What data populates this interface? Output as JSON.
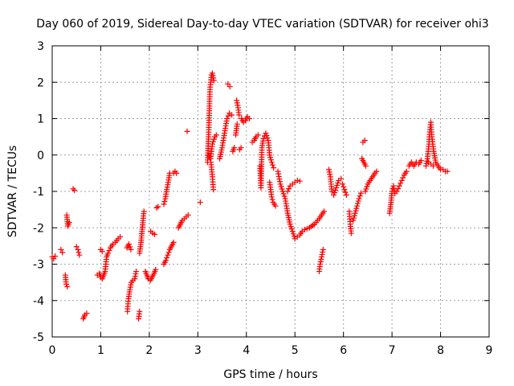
{
  "chart_data": {
    "type": "scatter",
    "title": "Day 060 of 2019, Sidereal Day-to-day VTEC variation (SDTVAR) for receiver ohi3",
    "xlabel": "GPS time / hours",
    "ylabel": "SDTVAR / TECUs",
    "xlim": [
      0,
      9
    ],
    "ylim": [
      -5,
      3
    ],
    "xticks": [
      0,
      1,
      2,
      3,
      4,
      5,
      6,
      7,
      8,
      9
    ],
    "yticks": [
      -5,
      -4,
      -3,
      -2,
      -1,
      0,
      1,
      2,
      3
    ],
    "grid": true,
    "marker": "+",
    "color": "#ff0000",
    "segments": [
      [
        [
          0.0,
          -2.8
        ],
        [
          0.03,
          -2.85
        ],
        [
          0.06,
          -2.78
        ]
      ],
      [
        [
          0.18,
          -2.6
        ],
        [
          0.21,
          -2.68
        ]
      ],
      [
        [
          0.27,
          -3.3
        ],
        [
          0.29,
          -3.55
        ],
        [
          0.31,
          -3.62
        ]
      ],
      [
        [
          0.3,
          -1.65
        ],
        [
          0.32,
          -1.95
        ],
        [
          0.35,
          -1.85
        ]
      ],
      [
        [
          0.43,
          -0.93
        ],
        [
          0.46,
          -0.97
        ]
      ],
      [
        [
          0.5,
          -2.52
        ],
        [
          0.53,
          -2.6
        ],
        [
          0.56,
          -2.75
        ]
      ],
      [
        [
          0.64,
          -4.5
        ],
        [
          0.67,
          -4.4
        ],
        [
          0.71,
          -4.35
        ]
      ],
      [
        [
          0.93,
          -3.3
        ],
        [
          0.97,
          -3.25
        ],
        [
          1.0,
          -3.35
        ],
        [
          1.03,
          -3.4
        ],
        [
          1.06,
          -3.3
        ],
        [
          1.09,
          -3.2
        ],
        [
          1.12,
          -2.8
        ],
        [
          1.15,
          -2.7
        ],
        [
          1.2,
          -2.55
        ],
        [
          1.25,
          -2.45
        ],
        [
          1.3,
          -2.4
        ],
        [
          1.36,
          -2.3
        ],
        [
          1.4,
          -2.25
        ]
      ],
      [
        [
          1.0,
          -2.6
        ],
        [
          1.03,
          -2.65
        ]
      ],
      [
        [
          1.55,
          -4.3
        ],
        [
          1.57,
          -3.95
        ],
        [
          1.6,
          -3.7
        ],
        [
          1.63,
          -3.5
        ],
        [
          1.66,
          -3.45
        ],
        [
          1.7,
          -3.4
        ],
        [
          1.73,
          -3.2
        ]
      ],
      [
        [
          1.54,
          -2.55
        ],
        [
          1.58,
          -2.45
        ],
        [
          1.62,
          -2.6
        ]
      ],
      [
        [
          1.78,
          -4.5
        ],
        [
          1.8,
          -4.3
        ]
      ],
      [
        [
          1.8,
          -2.7
        ],
        [
          1.83,
          -2.4
        ],
        [
          1.85,
          -2.1
        ],
        [
          1.87,
          -1.8
        ],
        [
          1.89,
          -1.55
        ]
      ],
      [
        [
          1.92,
          -3.2
        ],
        [
          1.95,
          -3.3
        ],
        [
          1.98,
          -3.4
        ],
        [
          2.02,
          -3.45
        ],
        [
          2.06,
          -3.35
        ],
        [
          2.1,
          -3.25
        ],
        [
          2.13,
          -3.15
        ]
      ],
      [
        [
          2.03,
          -2.1
        ],
        [
          2.07,
          -2.15
        ],
        [
          2.11,
          -2.18
        ]
      ],
      [
        [
          2.15,
          -1.45
        ],
        [
          2.18,
          -1.42
        ]
      ],
      [
        [
          2.3,
          -3.0
        ],
        [
          2.34,
          -2.9
        ],
        [
          2.38,
          -2.75
        ],
        [
          2.42,
          -2.6
        ],
        [
          2.46,
          -2.5
        ],
        [
          2.5,
          -2.4
        ]
      ],
      [
        [
          2.3,
          -1.35
        ],
        [
          2.33,
          -1.2
        ],
        [
          2.36,
          -0.95
        ],
        [
          2.39,
          -0.75
        ],
        [
          2.42,
          -0.5
        ]
      ],
      [
        [
          2.5,
          -0.5
        ],
        [
          2.53,
          -0.45
        ],
        [
          2.56,
          -0.5
        ]
      ],
      [
        [
          2.6,
          -2.0
        ],
        [
          2.64,
          -1.9
        ],
        [
          2.68,
          -1.8
        ],
        [
          2.72,
          -1.75
        ],
        [
          2.76,
          -1.7
        ],
        [
          2.8,
          -1.65
        ]
      ],
      [
        [
          2.78,
          0.65
        ]
      ],
      [
        [
          3.05,
          -1.3
        ]
      ],
      [
        [
          3.2,
          -0.2
        ],
        [
          3.22,
          0.5
        ],
        [
          3.25,
          1.8
        ],
        [
          3.28,
          2.2
        ],
        [
          3.3,
          2.25
        ],
        [
          3.33,
          2.05
        ]
      ],
      [
        [
          3.27,
          -0.2
        ],
        [
          3.3,
          -0.6
        ],
        [
          3.32,
          -0.95
        ]
      ],
      [
        [
          3.22,
          0.0
        ],
        [
          3.26,
          -0.1
        ],
        [
          3.3,
          0.3
        ],
        [
          3.35,
          0.5
        ],
        [
          3.38,
          0.55
        ]
      ],
      [
        [
          3.45,
          -0.1
        ],
        [
          3.5,
          0.2
        ],
        [
          3.55,
          0.6
        ],
        [
          3.6,
          1.0
        ],
        [
          3.65,
          1.15
        ],
        [
          3.7,
          1.1
        ]
      ],
      [
        [
          3.62,
          1.95
        ],
        [
          3.66,
          1.88
        ]
      ],
      [
        [
          3.72,
          0.1
        ],
        [
          3.75,
          0.2
        ]
      ],
      [
        [
          3.78,
          0.55
        ],
        [
          3.81,
          0.85
        ]
      ],
      [
        [
          3.8,
          1.5
        ],
        [
          3.83,
          1.3
        ],
        [
          3.85,
          1.1
        ]
      ],
      [
        [
          3.86,
          0.15
        ],
        [
          3.89,
          0.2
        ]
      ],
      [
        [
          3.9,
          1.0
        ],
        [
          3.94,
          0.9
        ],
        [
          3.98,
          0.95
        ],
        [
          4.02,
          1.05
        ],
        [
          4.06,
          1.0
        ]
      ],
      [
        [
          4.12,
          0.35
        ],
        [
          4.16,
          0.4
        ],
        [
          4.2,
          0.5
        ],
        [
          4.24,
          0.55
        ]
      ],
      [
        [
          4.28,
          -0.3
        ],
        [
          4.3,
          -0.9
        ],
        [
          4.32,
          0.2
        ],
        [
          4.35,
          0.45
        ],
        [
          4.4,
          0.6
        ],
        [
          4.45,
          0.4
        ],
        [
          4.48,
          0.0
        ],
        [
          4.52,
          -0.2
        ],
        [
          4.56,
          -0.35
        ]
      ],
      [
        [
          4.48,
          -0.75
        ],
        [
          4.52,
          -1.15
        ],
        [
          4.55,
          -1.3
        ],
        [
          4.6,
          -1.4
        ]
      ],
      [
        [
          4.65,
          -0.45
        ],
        [
          4.7,
          -0.8
        ],
        [
          4.75,
          -1.0
        ],
        [
          4.8,
          -1.2
        ],
        [
          4.85,
          -1.6
        ],
        [
          4.9,
          -1.9
        ],
        [
          4.95,
          -2.1
        ],
        [
          5.0,
          -2.3
        ],
        [
          5.05,
          -2.25
        ],
        [
          5.1,
          -2.2
        ],
        [
          5.15,
          -2.1
        ],
        [
          5.2,
          -2.05
        ],
        [
          5.3,
          -2.0
        ],
        [
          5.4,
          -1.9
        ],
        [
          5.5,
          -1.75
        ],
        [
          5.55,
          -1.65
        ],
        [
          5.6,
          -1.55
        ]
      ],
      [
        [
          4.85,
          -1.0
        ],
        [
          4.9,
          -0.85
        ],
        [
          4.95,
          -0.8
        ],
        [
          5.0,
          -0.75
        ],
        [
          5.05,
          -0.7
        ],
        [
          5.1,
          -0.72
        ]
      ],
      [
        [
          5.5,
          -3.2
        ],
        [
          5.52,
          -3.0
        ],
        [
          5.55,
          -2.8
        ],
        [
          5.58,
          -2.6
        ]
      ],
      [
        [
          5.7,
          -0.4
        ],
        [
          5.73,
          -0.6
        ],
        [
          5.76,
          -1.0
        ]
      ],
      [
        [
          5.8,
          -1.1
        ],
        [
          5.85,
          -0.9
        ],
        [
          5.9,
          -0.7
        ],
        [
          5.95,
          -0.65
        ]
      ],
      [
        [
          5.98,
          -0.8
        ],
        [
          6.02,
          -0.95
        ],
        [
          6.06,
          -1.1
        ]
      ],
      [
        [
          6.12,
          -1.55
        ],
        [
          6.14,
          -1.9
        ],
        [
          6.16,
          -2.15
        ]
      ],
      [
        [
          6.2,
          -1.8
        ],
        [
          6.24,
          -1.6
        ],
        [
          6.28,
          -1.4
        ],
        [
          6.32,
          -1.2
        ],
        [
          6.36,
          -1.05
        ]
      ],
      [
        [
          6.4,
          0.35
        ],
        [
          6.44,
          0.4
        ]
      ],
      [
        [
          6.38,
          -0.1
        ],
        [
          6.42,
          -0.2
        ],
        [
          6.46,
          -0.3
        ]
      ],
      [
        [
          6.45,
          -1.0
        ],
        [
          6.5,
          -0.8
        ],
        [
          6.55,
          -0.7
        ],
        [
          6.6,
          -0.6
        ],
        [
          6.65,
          -0.5
        ]
      ],
      [
        [
          6.68,
          -0.45
        ]
      ],
      [
        [
          6.95,
          -1.6
        ],
        [
          6.98,
          -1.3
        ],
        [
          7.0,
          -1.0
        ],
        [
          7.03,
          -0.85
        ],
        [
          7.06,
          -1.05
        ],
        [
          7.1,
          -1.0
        ],
        [
          7.15,
          -0.85
        ],
        [
          7.2,
          -0.7
        ],
        [
          7.25,
          -0.55
        ],
        [
          7.3,
          -0.45
        ]
      ],
      [
        [
          7.35,
          -0.3
        ],
        [
          7.4,
          -0.2
        ],
        [
          7.45,
          -0.3
        ],
        [
          7.5,
          -0.2
        ],
        [
          7.55,
          -0.25
        ],
        [
          7.6,
          -0.15
        ]
      ],
      [
        [
          7.7,
          -0.3
        ],
        [
          7.73,
          -0.1
        ],
        [
          7.76,
          0.3
        ],
        [
          7.78,
          0.7
        ],
        [
          7.8,
          0.9
        ],
        [
          7.82,
          0.5
        ],
        [
          7.86,
          0.1
        ],
        [
          7.9,
          -0.2
        ],
        [
          7.95,
          -0.3
        ],
        [
          8.0,
          -0.4
        ],
        [
          8.05,
          -0.4
        ],
        [
          8.1,
          -0.45
        ],
        [
          8.14,
          -0.45
        ]
      ],
      [
        [
          7.75,
          -0.2
        ],
        [
          7.8,
          -0.25
        ],
        [
          7.85,
          -0.3
        ]
      ]
    ]
  }
}
